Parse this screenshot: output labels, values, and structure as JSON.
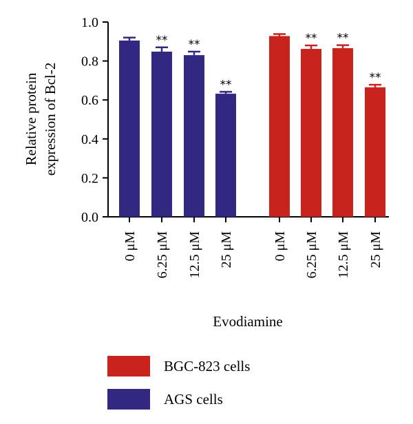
{
  "chart_data": {
    "type": "bar",
    "title": "",
    "xlabel": "Evodiamine",
    "ylabel_lines": [
      "Relative protein",
      "expression of Bcl-2"
    ],
    "ylim": [
      0,
      1.0
    ],
    "yticks": [
      "0.0",
      "0.2",
      "0.4",
      "0.6",
      "0.8",
      "1.0"
    ],
    "grid": false,
    "legend_placement": "bottom",
    "groups": [
      {
        "name": "AGS cells",
        "color": "#322882",
        "categories": [
          "0 μM",
          "6.25 μM",
          "12.5 μM",
          "25 μM"
        ],
        "values": [
          0.905,
          0.848,
          0.83,
          0.632
        ],
        "errors": [
          0.015,
          0.022,
          0.018,
          0.01
        ],
        "significance": [
          "",
          "**",
          "**",
          "**"
        ]
      },
      {
        "name": "BGC-823 cells",
        "color": "#c8231c",
        "categories": [
          "0 μM",
          "6.25 μM",
          "12.5 μM",
          "25 μM"
        ],
        "values": [
          0.928,
          0.862,
          0.866,
          0.665
        ],
        "errors": [
          0.01,
          0.018,
          0.015,
          0.013
        ],
        "significance": [
          "",
          "**",
          "**",
          "**"
        ]
      }
    ],
    "legend": [
      {
        "label": "BGC-823 cells",
        "color": "#c8231c"
      },
      {
        "label": "AGS cells",
        "color": "#322882"
      }
    ]
  }
}
